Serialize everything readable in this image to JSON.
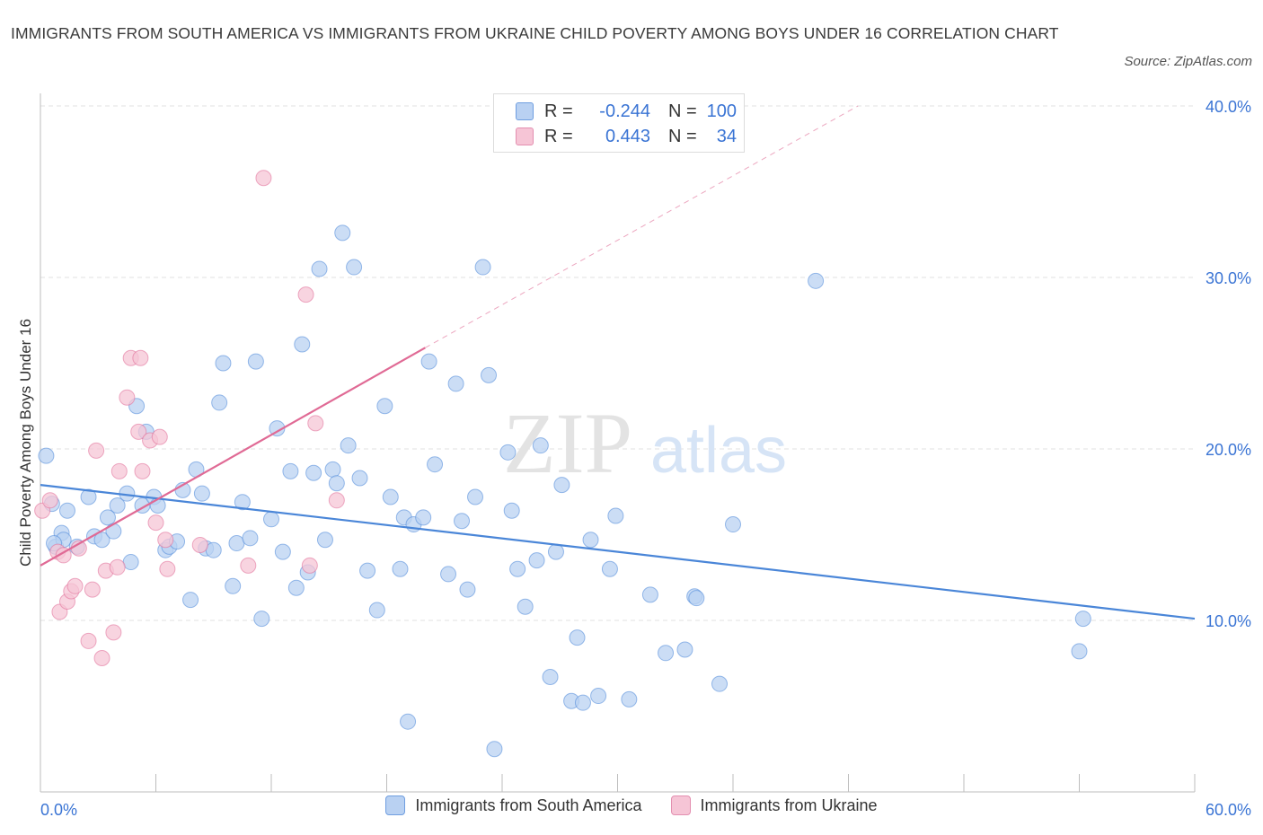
{
  "title": "IMMIGRANTS FROM SOUTH AMERICA VS IMMIGRANTS FROM UKRAINE CHILD POVERTY AMONG BOYS UNDER 16 CORRELATION CHART",
  "source": "Source: ZipAtlas.com",
  "watermark": {
    "zip": "ZIP",
    "atlas": "atlas"
  },
  "legend": {
    "r_label": "R =",
    "n_label": "N =",
    "rows": [
      {
        "name": "Immigrants from South America",
        "r": "-0.244",
        "n": "100"
      },
      {
        "name": "Immigrants from Ukraine",
        "r": "0.443",
        "n": "34"
      }
    ]
  },
  "chart_data": {
    "type": "scatter",
    "title": "IMMIGRANTS FROM SOUTH AMERICA VS IMMIGRANTS FROM UKRAINE CHILD POVERTY AMONG BOYS UNDER 16 CORRELATION CHART",
    "xlabel": "",
    "ylabel": "Child Poverty Among Boys Under 16",
    "xlim": [
      0,
      60
    ],
    "ylim": [
      0,
      40
    ],
    "x_tick_labels": [
      "0.0%",
      "60.0%"
    ],
    "y_ticks": [
      10,
      20,
      30,
      40
    ],
    "y_tick_labels": [
      "10.0%",
      "20.0%",
      "30.0%",
      "40.0%"
    ],
    "grid": true,
    "series": [
      {
        "name": "Immigrants from South America",
        "color": "#4a86d8",
        "fill": "#b9d1f2",
        "trend": {
          "x": [
            0,
            60
          ],
          "y": [
            17.9,
            10.1
          ],
          "style": "solid"
        },
        "points": [
          [
            0.3,
            19.6
          ],
          [
            0.6,
            16.8
          ],
          [
            0.8,
            14.3
          ],
          [
            1.1,
            15.1
          ],
          [
            1.2,
            14.7
          ],
          [
            1.4,
            16.4
          ],
          [
            1.9,
            14.3
          ],
          [
            2.5,
            17.2
          ],
          [
            2.8,
            14.9
          ],
          [
            3.2,
            14.7
          ],
          [
            3.5,
            16.0
          ],
          [
            3.8,
            15.2
          ],
          [
            4.0,
            16.7
          ],
          [
            4.5,
            17.4
          ],
          [
            4.7,
            13.4
          ],
          [
            5.0,
            22.5
          ],
          [
            5.3,
            16.7
          ],
          [
            5.5,
            21.0
          ],
          [
            5.9,
            17.2
          ],
          [
            6.1,
            16.7
          ],
          [
            6.5,
            14.1
          ],
          [
            6.7,
            14.3
          ],
          [
            7.1,
            14.6
          ],
          [
            7.4,
            17.6
          ],
          [
            7.8,
            11.2
          ],
          [
            8.1,
            18.8
          ],
          [
            8.4,
            17.4
          ],
          [
            8.6,
            14.2
          ],
          [
            9.0,
            14.1
          ],
          [
            9.3,
            22.7
          ],
          [
            9.5,
            25.0
          ],
          [
            10.0,
            12.0
          ],
          [
            10.2,
            14.5
          ],
          [
            10.5,
            16.9
          ],
          [
            10.9,
            14.8
          ],
          [
            11.2,
            25.1
          ],
          [
            11.5,
            10.1
          ],
          [
            12.0,
            15.9
          ],
          [
            12.3,
            21.2
          ],
          [
            12.6,
            14.0
          ],
          [
            13.0,
            18.7
          ],
          [
            13.3,
            11.9
          ],
          [
            13.6,
            26.1
          ],
          [
            13.9,
            12.8
          ],
          [
            14.2,
            18.6
          ],
          [
            14.5,
            30.5
          ],
          [
            14.8,
            14.7
          ],
          [
            15.2,
            18.8
          ],
          [
            15.4,
            18.0
          ],
          [
            15.7,
            32.6
          ],
          [
            16.0,
            20.2
          ],
          [
            16.3,
            30.6
          ],
          [
            16.6,
            18.3
          ],
          [
            17.0,
            12.9
          ],
          [
            17.5,
            10.6
          ],
          [
            17.9,
            22.5
          ],
          [
            18.2,
            17.2
          ],
          [
            18.7,
            13.0
          ],
          [
            18.9,
            16.0
          ],
          [
            19.1,
            4.1
          ],
          [
            19.4,
            15.6
          ],
          [
            19.9,
            16.0
          ],
          [
            20.2,
            25.1
          ],
          [
            20.5,
            19.1
          ],
          [
            21.2,
            12.7
          ],
          [
            21.6,
            23.8
          ],
          [
            21.9,
            15.8
          ],
          [
            22.2,
            11.8
          ],
          [
            22.6,
            17.2
          ],
          [
            23.0,
            30.6
          ],
          [
            23.3,
            24.3
          ],
          [
            23.6,
            2.5
          ],
          [
            24.3,
            19.8
          ],
          [
            24.5,
            16.4
          ],
          [
            24.8,
            13.0
          ],
          [
            25.2,
            10.8
          ],
          [
            25.8,
            13.5
          ],
          [
            26.0,
            20.2
          ],
          [
            26.5,
            6.7
          ],
          [
            26.8,
            14.0
          ],
          [
            27.1,
            17.9
          ],
          [
            27.6,
            5.3
          ],
          [
            27.9,
            9.0
          ],
          [
            28.2,
            5.2
          ],
          [
            28.6,
            14.7
          ],
          [
            29.0,
            5.6
          ],
          [
            29.6,
            13.0
          ],
          [
            29.9,
            16.1
          ],
          [
            30.6,
            5.4
          ],
          [
            31.7,
            11.5
          ],
          [
            32.5,
            8.1
          ],
          [
            33.5,
            8.3
          ],
          [
            34.0,
            11.4
          ],
          [
            34.1,
            11.3
          ],
          [
            35.3,
            6.3
          ],
          [
            36.0,
            15.6
          ],
          [
            40.3,
            29.8
          ],
          [
            54.0,
            8.2
          ],
          [
            54.2,
            10.1
          ],
          [
            0.7,
            14.5
          ]
        ]
      },
      {
        "name": "Immigrants from Ukraine",
        "color": "#e06a95",
        "fill": "#f6c5d6",
        "trend": {
          "x": [
            0,
            20
          ],
          "y": [
            13.2,
            25.9
          ],
          "style": "solid",
          "extension": {
            "x": [
              20,
              42.5
            ],
            "y": [
              25.9,
              40
            ]
          }
        },
        "points": [
          [
            0.1,
            16.4
          ],
          [
            0.5,
            17.0
          ],
          [
            0.9,
            14.0
          ],
          [
            1.0,
            10.5
          ],
          [
            1.2,
            13.8
          ],
          [
            1.4,
            11.1
          ],
          [
            1.6,
            11.7
          ],
          [
            1.8,
            12.0
          ],
          [
            2.0,
            14.2
          ],
          [
            2.5,
            8.8
          ],
          [
            2.7,
            11.8
          ],
          [
            2.9,
            19.9
          ],
          [
            3.2,
            7.8
          ],
          [
            3.4,
            12.9
          ],
          [
            3.8,
            9.3
          ],
          [
            4.0,
            13.1
          ],
          [
            4.1,
            18.7
          ],
          [
            4.5,
            23.0
          ],
          [
            4.7,
            25.3
          ],
          [
            5.1,
            21.0
          ],
          [
            5.2,
            25.3
          ],
          [
            5.3,
            18.7
          ],
          [
            5.7,
            20.5
          ],
          [
            6.0,
            15.7
          ],
          [
            6.2,
            20.7
          ],
          [
            6.5,
            14.7
          ],
          [
            6.6,
            13.0
          ],
          [
            8.3,
            14.4
          ],
          [
            10.8,
            13.2
          ],
          [
            11.6,
            35.8
          ],
          [
            13.8,
            29.0
          ],
          [
            14.0,
            13.2
          ],
          [
            14.3,
            21.5
          ],
          [
            15.4,
            17.0
          ]
        ]
      }
    ]
  }
}
